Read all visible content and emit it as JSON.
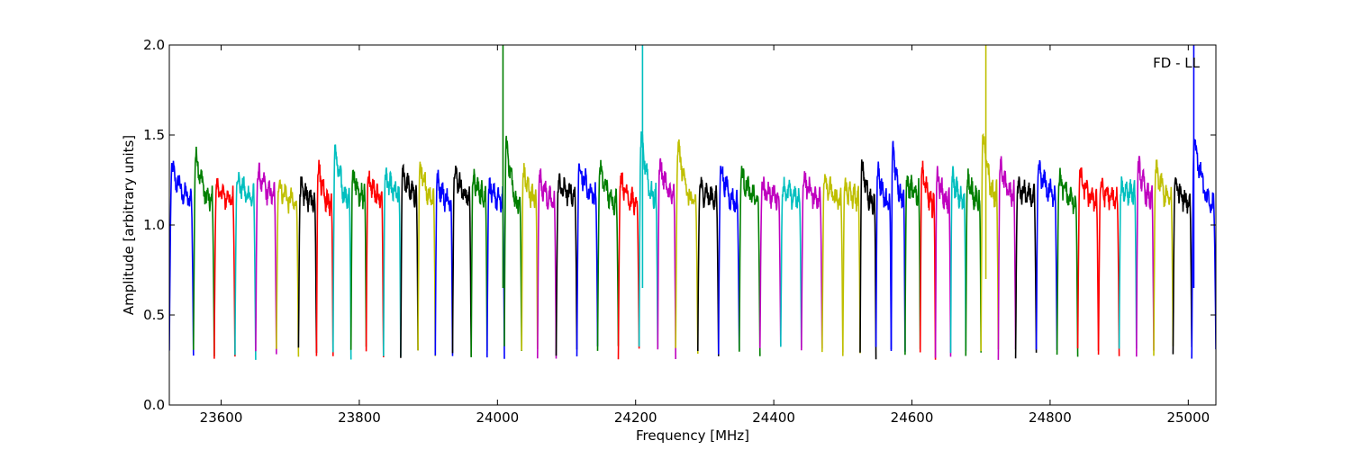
{
  "chart_data": {
    "type": "line",
    "title": "",
    "annotation": "FD - LL",
    "xlabel": "Frequency [MHz]",
    "ylabel": "Amplitude [arbitrary units]",
    "xlim": [
      23525,
      25040
    ],
    "ylim": [
      0.0,
      2.0
    ],
    "xticks": [
      23600,
      23800,
      24000,
      24200,
      24400,
      24600,
      24800,
      25000
    ],
    "yticks": [
      0.0,
      0.5,
      1.0,
      1.5,
      2.0
    ],
    "grid": false,
    "legend": "none",
    "description": "Overlapping bandpass-shaped spectral windows, each ~28 MHz wide with plateau near 1.1–1.3 and deep notches near 0.25–0.3 at the edges; colors cycle blue, green, red, cyan, magenta, yellow, black.",
    "color_cycle": [
      "#0000ff",
      "#007f00",
      "#ff0000",
      "#00bfbf",
      "#bf00bf",
      "#bfbf00",
      "#000000"
    ],
    "segments": [
      {
        "x0": 23525,
        "x1": 23560,
        "color": "#0000ff",
        "peak": 1.3
      },
      {
        "x0": 23560,
        "x1": 23590,
        "color": "#007f00",
        "peak": 1.38
      },
      {
        "x0": 23590,
        "x1": 23620,
        "color": "#ff0000",
        "peak": 1.2
      },
      {
        "x0": 23620,
        "x1": 23650,
        "color": "#00bfbf",
        "peak": 1.25
      },
      {
        "x0": 23650,
        "x1": 23680,
        "color": "#bf00bf",
        "peak": 1.28
      },
      {
        "x0": 23680,
        "x1": 23712,
        "color": "#bfbf00",
        "peak": 1.22
      },
      {
        "x0": 23712,
        "x1": 23738,
        "color": "#000000",
        "peak": 1.2
      },
      {
        "x0": 23738,
        "x1": 23762,
        "color": "#ff0000",
        "peak": 1.31
      },
      {
        "x0": 23762,
        "x1": 23788,
        "color": "#00bfbf",
        "peak": 1.4
      },
      {
        "x0": 23788,
        "x1": 23810,
        "color": "#007f00",
        "peak": 1.27
      },
      {
        "x0": 23810,
        "x1": 23835,
        "color": "#ff0000",
        "peak": 1.25
      },
      {
        "x0": 23835,
        "x1": 23860,
        "color": "#00bfbf",
        "peak": 1.26
      },
      {
        "x0": 23860,
        "x1": 23885,
        "color": "#000000",
        "peak": 1.28
      },
      {
        "x0": 23885,
        "x1": 23910,
        "color": "#bfbf00",
        "peak": 1.3
      },
      {
        "x0": 23910,
        "x1": 23935,
        "color": "#0000ff",
        "peak": 1.24
      },
      {
        "x0": 23935,
        "x1": 23962,
        "color": "#000000",
        "peak": 1.3
      },
      {
        "x0": 23962,
        "x1": 23985,
        "color": "#007f00",
        "peak": 1.25
      },
      {
        "x0": 23985,
        "x1": 24010,
        "color": "#0000ff",
        "peak": 1.2
      },
      {
        "x0": 24010,
        "x1": 24035,
        "color": "#007f00",
        "peak": 1.45
      },
      {
        "x0": 24035,
        "x1": 24058,
        "color": "#bfbf00",
        "peak": 1.28
      },
      {
        "x0": 24058,
        "x1": 24085,
        "color": "#bf00bf",
        "peak": 1.25
      },
      {
        "x0": 24085,
        "x1": 24115,
        "color": "#000000",
        "peak": 1.22
      },
      {
        "x0": 24115,
        "x1": 24145,
        "color": "#0000ff",
        "peak": 1.32
      },
      {
        "x0": 24145,
        "x1": 24175,
        "color": "#007f00",
        "peak": 1.3
      },
      {
        "x0": 24175,
        "x1": 24205,
        "color": "#ff0000",
        "peak": 1.25
      },
      {
        "x0": 24205,
        "x1": 24232,
        "color": "#00bfbf",
        "peak": 1.47
      },
      {
        "x0": 24232,
        "x1": 24258,
        "color": "#bf00bf",
        "peak": 1.33
      },
      {
        "x0": 24258,
        "x1": 24290,
        "color": "#bfbf00",
        "peak": 1.42
      },
      {
        "x0": 24290,
        "x1": 24320,
        "color": "#000000",
        "peak": 1.2
      },
      {
        "x0": 24320,
        "x1": 24350,
        "color": "#0000ff",
        "peak": 1.3
      },
      {
        "x0": 24350,
        "x1": 24380,
        "color": "#007f00",
        "peak": 1.28
      },
      {
        "x0": 24380,
        "x1": 24410,
        "color": "#bf00bf",
        "peak": 1.2
      },
      {
        "x0": 24410,
        "x1": 24440,
        "color": "#00bfbf",
        "peak": 1.2
      },
      {
        "x0": 24440,
        "x1": 24470,
        "color": "#bf00bf",
        "peak": 1.25
      },
      {
        "x0": 24470,
        "x1": 24500,
        "color": "#bfbf00",
        "peak": 1.26
      },
      {
        "x0": 24500,
        "x1": 24525,
        "color": "#bfbf00",
        "peak": 1.2
      },
      {
        "x0": 24525,
        "x1": 24548,
        "color": "#000000",
        "peak": 1.33
      },
      {
        "x0": 24548,
        "x1": 24570,
        "color": "#0000ff",
        "peak": 1.3
      },
      {
        "x0": 24570,
        "x1": 24590,
        "color": "#0000ff",
        "peak": 1.42
      },
      {
        "x0": 24590,
        "x1": 24612,
        "color": "#007f00",
        "peak": 1.22
      },
      {
        "x0": 24612,
        "x1": 24634,
        "color": "#ff0000",
        "peak": 1.3
      },
      {
        "x0": 24634,
        "x1": 24656,
        "color": "#bf00bf",
        "peak": 1.27
      },
      {
        "x0": 24656,
        "x1": 24678,
        "color": "#00bfbf",
        "peak": 1.26
      },
      {
        "x0": 24678,
        "x1": 24700,
        "color": "#007f00",
        "peak": 1.25
      },
      {
        "x0": 24700,
        "x1": 24725,
        "color": "#bfbf00",
        "peak": 1.47
      },
      {
        "x0": 24725,
        "x1": 24750,
        "color": "#bf00bf",
        "peak": 1.32
      },
      {
        "x0": 24750,
        "x1": 24780,
        "color": "#000000",
        "peak": 1.2
      },
      {
        "x0": 24780,
        "x1": 24810,
        "color": "#0000ff",
        "peak": 1.3
      },
      {
        "x0": 24810,
        "x1": 24840,
        "color": "#007f00",
        "peak": 1.25
      },
      {
        "x0": 24840,
        "x1": 24870,
        "color": "#ff0000",
        "peak": 1.26
      },
      {
        "x0": 24870,
        "x1": 24900,
        "color": "#ff0000",
        "peak": 1.2
      },
      {
        "x0": 24900,
        "x1": 24925,
        "color": "#00bfbf",
        "peak": 1.2
      },
      {
        "x0": 24925,
        "x1": 24950,
        "color": "#bf00bf",
        "peak": 1.32
      },
      {
        "x0": 24950,
        "x1": 24978,
        "color": "#bfbf00",
        "peak": 1.3
      },
      {
        "x0": 24978,
        "x1": 25005,
        "color": "#000000",
        "peak": 1.23
      },
      {
        "x0": 25005,
        "x1": 25040,
        "color": "#0000ff",
        "peak": 1.46
      }
    ],
    "spikes": [
      {
        "x": 24008,
        "color": "#007f00",
        "top": 2.0,
        "bottom": 0.65
      },
      {
        "x": 24210,
        "color": "#00bfbf",
        "top": 2.0,
        "bottom": 0.65
      },
      {
        "x": 24707,
        "color": "#bfbf00",
        "top": 2.0,
        "bottom": 0.7
      },
      {
        "x": 25008,
        "color": "#0000ff",
        "top": 2.0,
        "bottom": 0.65
      }
    ]
  }
}
